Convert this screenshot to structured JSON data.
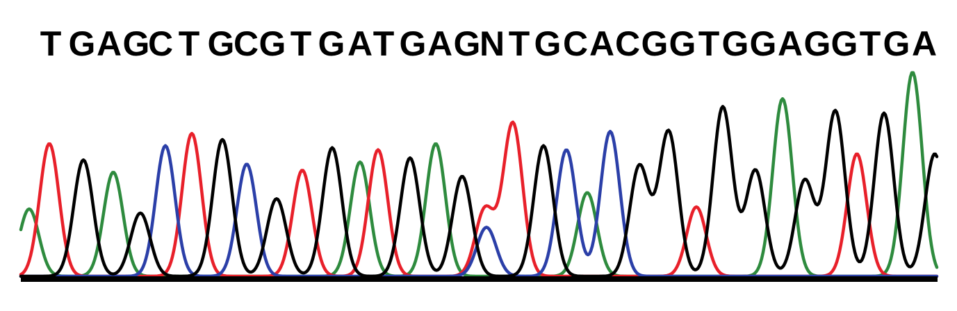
{
  "chart_data": {
    "type": "line",
    "title": "",
    "xlabel": "",
    "ylabel": "",
    "sequence": [
      "T",
      "G",
      "A",
      "G",
      "C",
      "T",
      "G",
      "C",
      "G",
      "T",
      "G",
      "A",
      "T",
      "G",
      "A",
      "G",
      "N",
      "T",
      "G",
      "C",
      "A",
      "C",
      "G",
      "G",
      "T",
      "G",
      "G",
      "A",
      "G",
      "G",
      "T",
      "G",
      "A"
    ],
    "base_colors": {
      "A": "#2E8B3E",
      "C": "#2B3FA8",
      "G": "#000000",
      "T": "#E8202A"
    },
    "ylim": [
      0,
      100
    ],
    "series": [
      {
        "base": "A",
        "peaks": [
          [
            42,
            33
          ],
          [
            163,
            51
          ],
          [
            518,
            56
          ],
          [
            627,
            65
          ],
          [
            845,
            41
          ],
          [
            1126,
            87
          ],
          [
            1313,
            100
          ]
        ]
      },
      {
        "base": "C",
        "peaks": [
          [
            238,
            64
          ],
          [
            355,
            55
          ],
          [
            700,
            24
          ],
          [
            815,
            62
          ],
          [
            878,
            71
          ]
        ]
      },
      {
        "base": "G",
        "peaks": [
          [
            120,
            57
          ],
          [
            202,
            31
          ],
          [
            320,
            67
          ],
          [
            398,
            38
          ],
          [
            478,
            63
          ],
          [
            590,
            58
          ],
          [
            665,
            49
          ],
          [
            782,
            64
          ],
          [
            920,
            54
          ],
          [
            962,
            71
          ],
          [
            1040,
            83
          ],
          [
            1087,
            52
          ],
          [
            1158,
            47
          ],
          [
            1202,
            81
          ],
          [
            1272,
            80
          ],
          [
            1345,
            60
          ]
        ]
      },
      {
        "base": "T",
        "peaks": [
          [
            71,
            65
          ],
          [
            276,
            70
          ],
          [
            435,
            52
          ],
          [
            544,
            62
          ],
          [
            698,
            33
          ],
          [
            738,
            75
          ],
          [
            1002,
            34
          ],
          [
            1233,
            60
          ]
        ]
      }
    ]
  }
}
